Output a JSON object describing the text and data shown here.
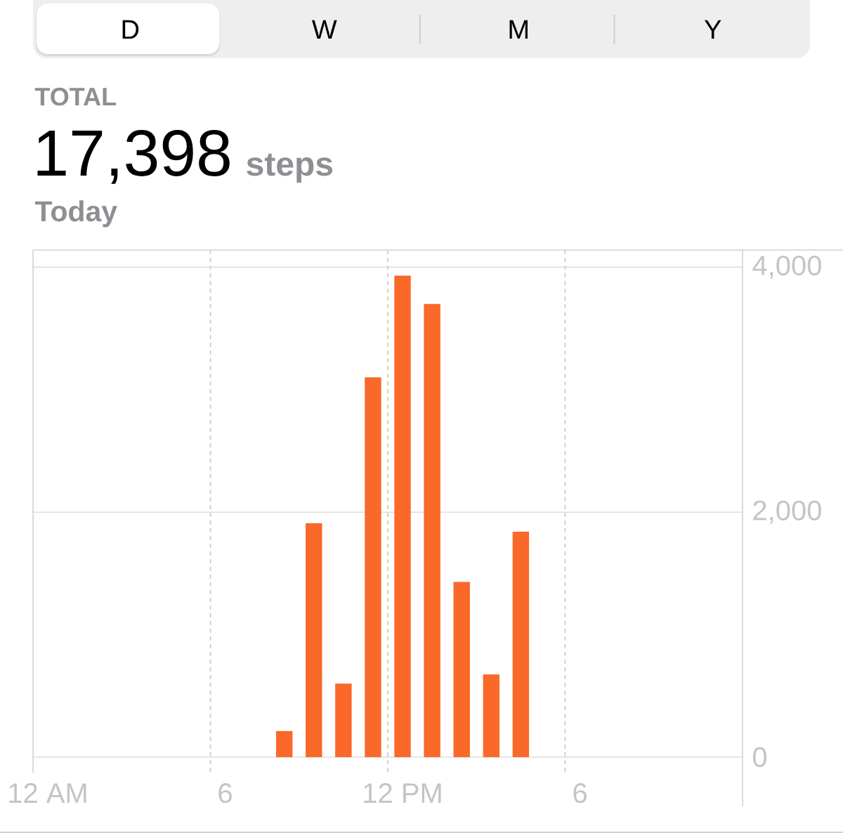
{
  "chart_data": {
    "type": "bar",
    "title": "17,398",
    "subtitle": "Today",
    "annotations": [
      "D",
      "W",
      "M",
      "Y",
      "TOTAL",
      "steps"
    ],
    "categories": [
      "12 AM",
      null,
      null,
      null,
      null,
      null,
      "6",
      null,
      null,
      null,
      null,
      null,
      "12 PM",
      null,
      null,
      null,
      null,
      null,
      "6",
      null,
      null,
      null,
      null,
      null
    ],
    "values": [
      null,
      null,
      null,
      null,
      null,
      null,
      null,
      null,
      213,
      1910,
      600,
      3100,
      3930,
      3700,
      1430,
      675,
      1840,
      null,
      null,
      null,
      null,
      null,
      null,
      null
    ],
    "color": "#fa682a",
    "ylim": [
      0,
      4140
    ],
    "yticks": [
      0,
      {
        "value": 2000,
        "label": "2,000"
      },
      {
        "value": 4000,
        "label": "4,000"
      }
    ],
    "grid": true
  }
}
